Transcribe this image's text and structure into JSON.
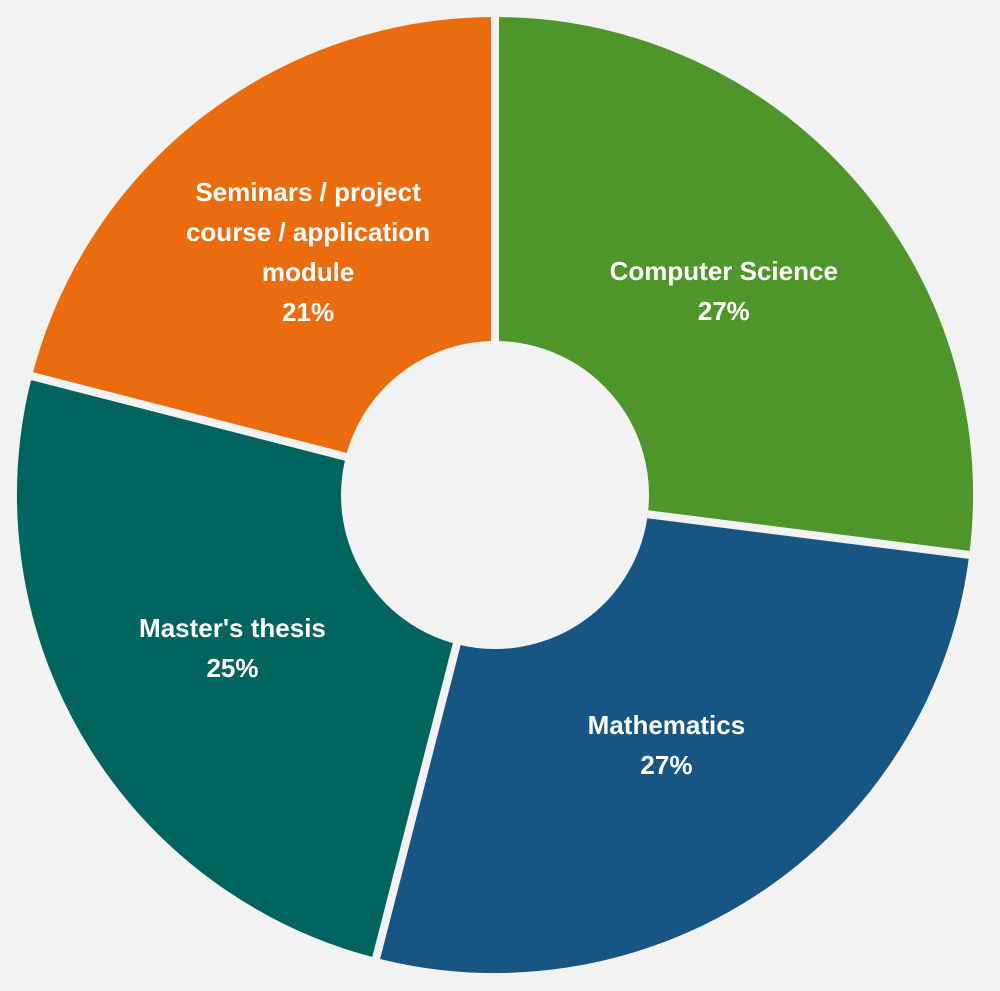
{
  "chart_data": {
    "type": "donut",
    "categories": [
      "Computer Science",
      "Mathematics",
      "Master's thesis",
      "Seminars / project course / application module"
    ],
    "values": [
      27,
      27,
      25,
      21
    ],
    "value_labels": [
      "27%",
      "27%",
      "25%",
      "21%"
    ],
    "colors": [
      "#4e9629",
      "#175683",
      "#02645e",
      "#eb6c0e"
    ]
  }
}
